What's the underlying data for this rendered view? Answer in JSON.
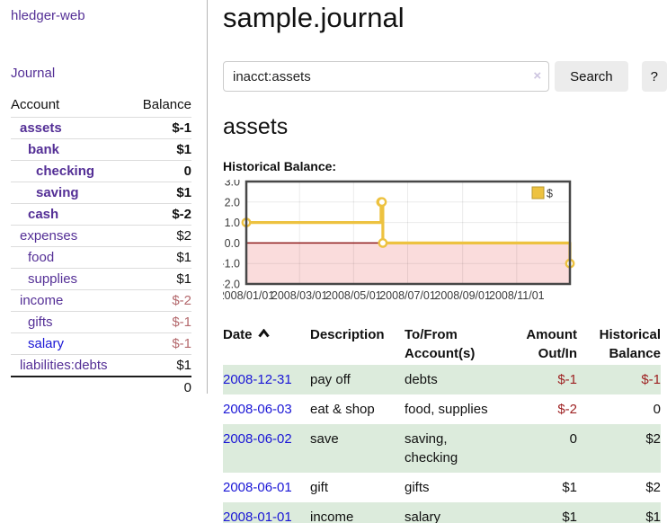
{
  "colors": {
    "purple": "#542f96",
    "blue": "#1a16d6",
    "red_strong": "#9e2122",
    "red_soft": "#b4696d",
    "green_row": "#dcebdc",
    "gold": "#EDC240",
    "gold_border": "#b9982e",
    "pink_fill": "#fadcdc",
    "zero_line": "#8f1a1a",
    "chart_border": "#474747"
  },
  "app": {
    "brand": "hledger-web",
    "nav_journal": "Journal"
  },
  "sidebar": {
    "header": {
      "account": "Account",
      "balance": "Balance"
    },
    "accounts": [
      {
        "name": "assets",
        "depth": 1,
        "bold": true,
        "balance": "$-1",
        "style": "neg"
      },
      {
        "name": "bank",
        "depth": 2,
        "bold": true,
        "balance": "$1",
        "style": ""
      },
      {
        "name": "checking",
        "depth": 3,
        "bold": true,
        "balance": "0",
        "style": ""
      },
      {
        "name": "saving",
        "depth": 3,
        "bold": true,
        "balance": "$1",
        "style": ""
      },
      {
        "name": "cash",
        "depth": 2,
        "bold": true,
        "balance": "$-2",
        "style": "neg"
      },
      {
        "name": "expenses",
        "depth": 1,
        "bold": false,
        "balance": "$2",
        "style": ""
      },
      {
        "name": "food",
        "depth": 2,
        "bold": false,
        "balance": "$1",
        "style": ""
      },
      {
        "name": "supplies",
        "depth": 2,
        "bold": false,
        "balance": "$1",
        "style": ""
      },
      {
        "name": "income",
        "depth": 1,
        "bold": false,
        "balance": "$-2",
        "style": "soft"
      },
      {
        "name": "gifts",
        "depth": 2,
        "bold": false,
        "balance": "$-1",
        "style": "soft"
      },
      {
        "name": "salary",
        "depth": 2,
        "bold": false,
        "balance": "$-1",
        "style": "soft",
        "link": "blue"
      },
      {
        "name": "liabilities:debts",
        "depth": 1,
        "bold": false,
        "balance": "$1",
        "style": ""
      }
    ],
    "total": "0"
  },
  "header": {
    "title": "sample.journal"
  },
  "search": {
    "value": "inacct:assets",
    "clear_icon": "×",
    "button": "Search",
    "help_button": "?"
  },
  "account_page": {
    "title": "assets",
    "chart_label": "Historical Balance:"
  },
  "chart_data": {
    "type": "line",
    "step": true,
    "title": "Historical Balance:",
    "legend_position": "top-right",
    "grid": true,
    "ylim": [
      -2,
      3
    ],
    "x_range": [
      "2008-01-01",
      "2008-12-31"
    ],
    "y_ticks": [
      {
        "v": 3,
        "label": "3.0"
      },
      {
        "v": 2,
        "label": "2.0"
      },
      {
        "v": 1,
        "label": "1.0"
      },
      {
        "v": 0,
        "label": "0.0"
      },
      {
        "v": -1,
        "label": "-1.0"
      },
      {
        "v": -2,
        "label": "-2.0"
      }
    ],
    "x_ticks": [
      {
        "date": "2008-01-01",
        "label": "2008/01/01"
      },
      {
        "date": "2008-03-01",
        "label": "2008/03/01"
      },
      {
        "date": "2008-05-01",
        "label": "2008/05/01"
      },
      {
        "date": "2008-07-01",
        "label": "2008/07/01"
      },
      {
        "date": "2008-09-01",
        "label": "2008/09/01"
      },
      {
        "date": "2008-11-01",
        "label": "2008/11/01"
      }
    ],
    "series": [
      {
        "name": "$",
        "color": "#EDC240",
        "points": [
          [
            "2008-01-01",
            1
          ],
          [
            "2008-06-01",
            2
          ],
          [
            "2008-06-02",
            2
          ],
          [
            "2008-06-03",
            0
          ],
          [
            "2008-12-31",
            -1
          ]
        ]
      }
    ],
    "negative_region_below": 0
  },
  "transactions": {
    "columns": {
      "date": "Date",
      "description": "Description",
      "tofrom_1": "To/From",
      "tofrom_2": "Account(s)",
      "amount_1": "Amount",
      "amount_2": "Out/In",
      "hist_1": "Historical",
      "hist_2": "Balance"
    },
    "sort": "date-ascending",
    "rows": [
      {
        "date": "2008-12-31",
        "description": "pay off",
        "accounts": "debts",
        "amount": "$-1",
        "amount_neg": true,
        "hist": "$-1",
        "hist_neg": true,
        "shaded": true
      },
      {
        "date": "2008-06-03",
        "description": "eat & shop",
        "accounts": "food, supplies",
        "amount": "$-2",
        "amount_neg": true,
        "hist": "0",
        "hist_neg": false,
        "shaded": false
      },
      {
        "date": "2008-06-02",
        "description": "save",
        "accounts": "saving, checking",
        "amount": "0",
        "amount_neg": false,
        "hist": "$2",
        "hist_neg": false,
        "shaded": true
      },
      {
        "date": "2008-06-01",
        "description": "gift",
        "accounts": "gifts",
        "amount": "$1",
        "amount_neg": false,
        "hist": "$2",
        "hist_neg": false,
        "shaded": false
      },
      {
        "date": "2008-01-01",
        "description": "income",
        "accounts": "salary",
        "amount": "$1",
        "amount_neg": false,
        "hist": "$1",
        "hist_neg": false,
        "shaded": true
      }
    ]
  }
}
